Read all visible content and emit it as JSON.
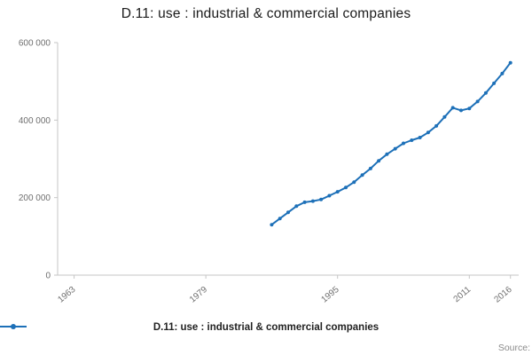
{
  "title": "D.11: use : industrial & commercial companies",
  "legend": {
    "label": "D.11: use : industrial & commercial companies"
  },
  "source_label": "Source:",
  "chart_data": {
    "type": "line",
    "title": "D.11: use : industrial & commercial companies",
    "xlabel": "",
    "ylabel": "",
    "grid": false,
    "legend_position": "bottom",
    "xlim": [
      1961,
      2017
    ],
    "ylim": [
      0,
      600000
    ],
    "x_ticks": [
      1963,
      1979,
      1995,
      2011,
      2016
    ],
    "y_ticks": [
      0,
      200000,
      400000,
      600000
    ],
    "y_tick_labels": [
      "0",
      "200 000",
      "400 000",
      "600 000"
    ],
    "x": [
      1987,
      1988,
      1989,
      1990,
      1991,
      1992,
      1993,
      1994,
      1995,
      1996,
      1997,
      1998,
      1999,
      2000,
      2001,
      2002,
      2003,
      2004,
      2005,
      2006,
      2007,
      2008,
      2009,
      2010,
      2011,
      2012,
      2013,
      2014,
      2015,
      2016
    ],
    "series": [
      {
        "name": "D.11: use : industrial & commercial companies",
        "color": "#1d70b8",
        "values": [
          130000,
          146000,
          162000,
          178000,
          188000,
          191000,
          195000,
          205000,
          215000,
          226000,
          240000,
          258000,
          275000,
          295000,
          312000,
          326000,
          340000,
          348000,
          355000,
          368000,
          385000,
          408000,
          432000,
          425000,
          430000,
          448000,
          470000,
          495000,
          520000,
          548000
        ]
      }
    ],
    "axis_color": "#c6c6c6",
    "tick_label_color": "#6f6f6f"
  }
}
